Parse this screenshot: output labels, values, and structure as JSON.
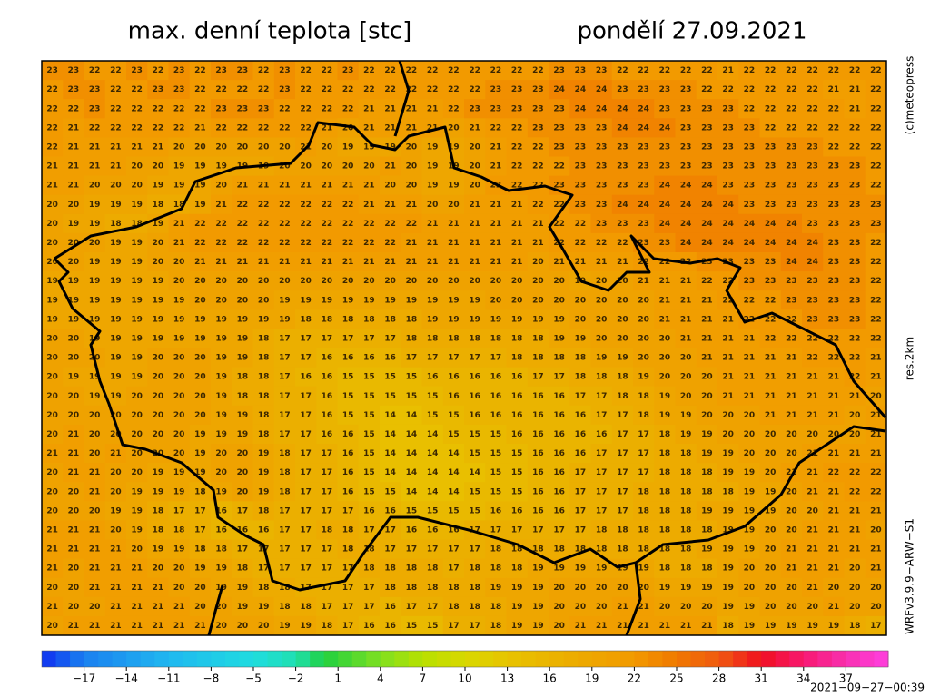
{
  "header": {
    "title": "max. denní teplota [stc]",
    "date": "pondělí 27.09.2021"
  },
  "side_labels": [
    "(c)meteopress",
    "res.2km",
    "WRFv3.9.9−ARW−S1"
  ],
  "timestamp": "2021−09−27−00:39",
  "map": {
    "grid": [
      [
        23,
        23,
        22,
        22,
        23,
        22,
        23,
        22,
        23,
        23,
        22,
        23,
        22,
        22,
        23,
        22,
        22,
        22,
        22,
        22,
        22,
        22,
        22,
        22,
        23,
        23,
        23,
        22,
        22,
        22,
        22,
        22,
        21,
        22,
        22,
        22,
        22,
        22,
        22,
        22
      ],
      [
        22,
        23,
        23,
        22,
        22,
        23,
        23,
        22,
        22,
        22,
        22,
        23,
        22,
        22,
        22,
        22,
        22,
        22,
        22,
        22,
        22,
        23,
        23,
        23,
        24,
        24,
        24,
        23,
        23,
        23,
        23,
        22,
        22,
        22,
        22,
        22,
        22,
        21,
        21,
        22
      ],
      [
        22,
        22,
        23,
        22,
        22,
        22,
        22,
        22,
        23,
        23,
        23,
        22,
        22,
        22,
        22,
        21,
        21,
        21,
        21,
        22,
        23,
        23,
        23,
        23,
        23,
        24,
        24,
        24,
        24,
        23,
        23,
        23,
        23,
        22,
        22,
        22,
        22,
        22,
        21,
        22
      ],
      [
        22,
        21,
        22,
        22,
        22,
        22,
        22,
        21,
        22,
        22,
        22,
        22,
        22,
        21,
        20,
        21,
        21,
        21,
        21,
        20,
        21,
        22,
        22,
        23,
        23,
        23,
        23,
        24,
        24,
        24,
        23,
        23,
        23,
        23,
        22,
        22,
        22,
        22,
        22,
        22
      ],
      [
        22,
        21,
        21,
        21,
        21,
        21,
        20,
        20,
        20,
        20,
        20,
        20,
        21,
        20,
        19,
        19,
        19,
        20,
        19,
        19,
        20,
        21,
        22,
        22,
        23,
        23,
        23,
        23,
        23,
        23,
        23,
        23,
        23,
        23,
        23,
        23,
        23,
        22,
        22,
        22
      ],
      [
        21,
        21,
        21,
        21,
        20,
        20,
        19,
        19,
        19,
        19,
        19,
        20,
        20,
        20,
        20,
        20,
        21,
        20,
        19,
        19,
        20,
        21,
        22,
        22,
        22,
        23,
        23,
        23,
        23,
        23,
        23,
        23,
        23,
        23,
        23,
        23,
        23,
        23,
        23,
        22
      ],
      [
        21,
        21,
        20,
        20,
        20,
        19,
        19,
        19,
        20,
        21,
        21,
        21,
        21,
        21,
        21,
        21,
        20,
        20,
        19,
        19,
        20,
        22,
        22,
        22,
        23,
        23,
        23,
        23,
        23,
        24,
        24,
        24,
        23,
        23,
        23,
        23,
        23,
        23,
        23,
        22
      ],
      [
        20,
        20,
        19,
        19,
        19,
        18,
        18,
        19,
        21,
        22,
        22,
        22,
        22,
        22,
        22,
        21,
        21,
        21,
        20,
        20,
        21,
        21,
        21,
        22,
        22,
        23,
        23,
        24,
        24,
        24,
        24,
        24,
        24,
        23,
        23,
        23,
        23,
        23,
        23,
        23
      ],
      [
        20,
        19,
        19,
        18,
        18,
        19,
        21,
        22,
        22,
        22,
        22,
        22,
        22,
        22,
        22,
        22,
        22,
        22,
        21,
        21,
        21,
        21,
        21,
        21,
        22,
        22,
        23,
        23,
        23,
        24,
        24,
        24,
        24,
        24,
        24,
        24,
        23,
        23,
        23,
        23
      ],
      [
        20,
        20,
        20,
        19,
        19,
        20,
        21,
        22,
        22,
        22,
        22,
        22,
        22,
        22,
        22,
        22,
        22,
        21,
        21,
        21,
        21,
        21,
        21,
        21,
        22,
        22,
        22,
        22,
        23,
        23,
        24,
        24,
        24,
        24,
        24,
        24,
        24,
        23,
        23,
        22
      ],
      [
        20,
        20,
        19,
        19,
        19,
        20,
        20,
        21,
        21,
        21,
        21,
        21,
        21,
        21,
        21,
        21,
        21,
        21,
        21,
        21,
        21,
        21,
        21,
        20,
        21,
        21,
        21,
        21,
        22,
        22,
        22,
        23,
        23,
        23,
        23,
        24,
        24,
        23,
        23,
        22
      ],
      [
        19,
        19,
        19,
        19,
        19,
        19,
        20,
        20,
        20,
        20,
        20,
        20,
        20,
        20,
        20,
        20,
        20,
        20,
        20,
        20,
        20,
        20,
        20,
        20,
        20,
        19,
        20,
        20,
        21,
        21,
        21,
        22,
        22,
        23,
        23,
        23,
        23,
        23,
        23,
        22
      ],
      [
        19,
        19,
        19,
        19,
        19,
        19,
        19,
        20,
        20,
        20,
        20,
        19,
        19,
        19,
        19,
        19,
        19,
        19,
        19,
        19,
        19,
        20,
        20,
        20,
        20,
        20,
        20,
        20,
        20,
        21,
        21,
        21,
        22,
        22,
        22,
        23,
        23,
        23,
        23,
        22
      ],
      [
        19,
        19,
        19,
        19,
        19,
        19,
        19,
        19,
        19,
        19,
        19,
        19,
        18,
        18,
        18,
        18,
        18,
        18,
        19,
        19,
        19,
        19,
        19,
        19,
        19,
        20,
        20,
        20,
        20,
        21,
        21,
        21,
        21,
        22,
        22,
        22,
        23,
        23,
        23,
        22
      ],
      [
        20,
        20,
        19,
        19,
        19,
        19,
        19,
        19,
        19,
        19,
        18,
        17,
        17,
        17,
        17,
        17,
        17,
        18,
        18,
        18,
        18,
        18,
        18,
        18,
        19,
        19,
        20,
        20,
        20,
        20,
        21,
        21,
        21,
        21,
        22,
        22,
        22,
        22,
        22,
        22
      ],
      [
        20,
        20,
        20,
        19,
        19,
        20,
        20,
        20,
        19,
        19,
        18,
        17,
        17,
        16,
        16,
        16,
        16,
        17,
        17,
        17,
        17,
        17,
        18,
        18,
        18,
        18,
        19,
        19,
        20,
        20,
        20,
        21,
        21,
        21,
        21,
        21,
        22,
        22,
        22,
        21
      ],
      [
        20,
        19,
        19,
        19,
        19,
        20,
        20,
        20,
        19,
        18,
        18,
        17,
        16,
        16,
        15,
        15,
        15,
        15,
        16,
        16,
        16,
        16,
        16,
        17,
        17,
        18,
        18,
        18,
        19,
        20,
        20,
        20,
        21,
        21,
        21,
        21,
        21,
        21,
        22,
        21
      ],
      [
        20,
        20,
        19,
        19,
        20,
        20,
        20,
        20,
        19,
        18,
        18,
        17,
        17,
        16,
        15,
        15,
        15,
        15,
        15,
        16,
        16,
        16,
        16,
        16,
        16,
        17,
        17,
        18,
        18,
        19,
        20,
        20,
        21,
        21,
        21,
        21,
        21,
        21,
        21,
        20
      ],
      [
        20,
        20,
        20,
        20,
        20,
        20,
        20,
        20,
        19,
        19,
        18,
        17,
        17,
        16,
        15,
        15,
        14,
        14,
        15,
        15,
        16,
        16,
        16,
        16,
        16,
        16,
        17,
        17,
        18,
        19,
        19,
        20,
        20,
        20,
        21,
        21,
        21,
        21,
        20,
        21
      ],
      [
        20,
        21,
        20,
        20,
        20,
        20,
        20,
        19,
        19,
        19,
        18,
        17,
        17,
        16,
        16,
        15,
        14,
        14,
        14,
        15,
        15,
        15,
        16,
        16,
        16,
        16,
        16,
        17,
        17,
        18,
        19,
        19,
        20,
        20,
        20,
        20,
        20,
        20,
        20,
        21
      ],
      [
        21,
        21,
        20,
        21,
        20,
        20,
        20,
        19,
        20,
        20,
        19,
        18,
        17,
        17,
        16,
        15,
        14,
        14,
        14,
        14,
        15,
        15,
        15,
        16,
        16,
        16,
        17,
        17,
        17,
        18,
        18,
        19,
        19,
        20,
        20,
        20,
        21,
        21,
        21,
        21
      ],
      [
        20,
        21,
        21,
        20,
        20,
        19,
        19,
        19,
        20,
        20,
        19,
        18,
        17,
        17,
        16,
        15,
        14,
        14,
        14,
        14,
        14,
        15,
        15,
        16,
        16,
        17,
        17,
        17,
        17,
        18,
        18,
        18,
        19,
        19,
        20,
        21,
        21,
        22,
        22,
        22
      ],
      [
        20,
        20,
        21,
        20,
        19,
        19,
        19,
        18,
        19,
        20,
        19,
        18,
        17,
        17,
        16,
        15,
        15,
        14,
        14,
        14,
        15,
        15,
        15,
        16,
        16,
        17,
        17,
        17,
        18,
        18,
        18,
        18,
        18,
        19,
        19,
        20,
        21,
        21,
        22,
        22
      ],
      [
        20,
        20,
        20,
        19,
        19,
        18,
        17,
        17,
        16,
        17,
        18,
        17,
        17,
        17,
        17,
        16,
        16,
        15,
        15,
        15,
        15,
        16,
        16,
        16,
        16,
        17,
        17,
        17,
        18,
        18,
        18,
        19,
        19,
        19,
        19,
        20,
        20,
        21,
        21,
        21
      ],
      [
        21,
        21,
        21,
        20,
        19,
        18,
        18,
        17,
        16,
        16,
        16,
        17,
        17,
        18,
        18,
        17,
        17,
        16,
        16,
        16,
        17,
        17,
        17,
        17,
        17,
        17,
        18,
        18,
        18,
        18,
        18,
        18,
        19,
        19,
        20,
        20,
        21,
        21,
        21,
        20
      ],
      [
        21,
        21,
        21,
        21,
        20,
        19,
        19,
        18,
        18,
        17,
        17,
        17,
        17,
        17,
        18,
        18,
        17,
        17,
        17,
        17,
        17,
        18,
        18,
        18,
        18,
        18,
        18,
        18,
        18,
        18,
        18,
        19,
        19,
        19,
        20,
        21,
        21,
        21,
        21,
        21
      ],
      [
        21,
        20,
        21,
        21,
        21,
        20,
        20,
        19,
        19,
        18,
        17,
        17,
        17,
        17,
        17,
        18,
        18,
        18,
        18,
        17,
        18,
        18,
        18,
        19,
        19,
        19,
        19,
        19,
        19,
        18,
        18,
        18,
        19,
        20,
        20,
        21,
        21,
        21,
        20,
        21
      ],
      [
        20,
        20,
        21,
        21,
        21,
        21,
        20,
        20,
        19,
        19,
        18,
        18,
        17,
        17,
        17,
        17,
        18,
        18,
        18,
        18,
        18,
        19,
        19,
        19,
        20,
        20,
        20,
        20,
        20,
        19,
        19,
        19,
        19,
        20,
        20,
        20,
        21,
        20,
        20,
        20
      ],
      [
        21,
        20,
        20,
        21,
        21,
        21,
        21,
        20,
        20,
        19,
        19,
        18,
        18,
        17,
        17,
        17,
        16,
        17,
        17,
        18,
        18,
        18,
        19,
        19,
        20,
        20,
        20,
        21,
        21,
        20,
        20,
        20,
        19,
        19,
        20,
        20,
        20,
        21,
        20,
        20
      ],
      [
        20,
        21,
        21,
        21,
        21,
        21,
        21,
        21,
        20,
        20,
        20,
        19,
        19,
        18,
        17,
        16,
        16,
        15,
        15,
        17,
        17,
        18,
        19,
        19,
        20,
        21,
        21,
        21,
        21,
        21,
        21,
        21,
        18,
        19,
        19,
        19,
        19,
        19,
        18,
        17
      ]
    ]
  },
  "colorbar": {
    "lim": [
      -20,
      40
    ],
    "ticks": [
      {
        "value": -17,
        "label": "−17"
      },
      {
        "value": -14,
        "label": "−14"
      },
      {
        "value": -11,
        "label": "−11"
      },
      {
        "value": -8,
        "label": "−8"
      },
      {
        "value": -5,
        "label": "−5"
      },
      {
        "value": -2,
        "label": "−2"
      },
      1,
      4,
      7,
      10,
      13,
      16,
      19,
      22,
      25,
      28,
      31,
      34,
      37
    ],
    "colormap": [
      [
        -20,
        "#1030f0"
      ],
      [
        -17,
        "#1a80f0"
      ],
      [
        -11,
        "#20b8f0"
      ],
      [
        -5,
        "#20dce0"
      ],
      [
        -2,
        "#20e0b0"
      ],
      [
        0,
        "#20d040"
      ],
      [
        4,
        "#80e020"
      ],
      [
        7,
        "#b8e000"
      ],
      [
        10,
        "#d8d800"
      ],
      [
        13,
        "#e8c400"
      ],
      [
        16,
        "#eab400"
      ],
      [
        19,
        "#eea600"
      ],
      [
        22,
        "#f29a00"
      ],
      [
        25,
        "#f07800"
      ],
      [
        28,
        "#f05a10"
      ],
      [
        31,
        "#f01020"
      ],
      [
        34,
        "#f81870"
      ],
      [
        37,
        "#f830b0"
      ],
      [
        40,
        "#ff40e0"
      ]
    ]
  }
}
